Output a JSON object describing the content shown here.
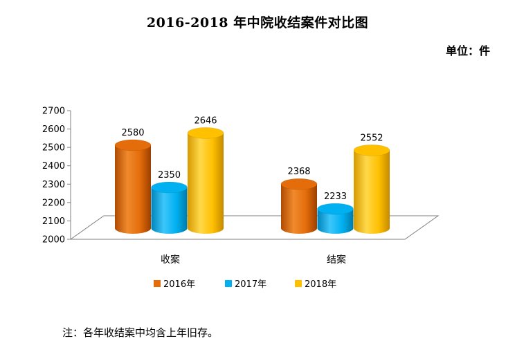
{
  "title": "2016-2018 年中院收结案件对比图",
  "unit_label": "单位：件",
  "note": "注：各年收结案中均含上年旧存。",
  "colors": {
    "2016年": "#e46c0a",
    "2017年": "#00b0f0",
    "2018年": "#ffc000"
  },
  "chart_data": {
    "type": "bar",
    "categories": [
      "收案",
      "结案"
    ],
    "series": [
      {
        "name": "2016年",
        "values": [
          2580,
          2368
        ]
      },
      {
        "name": "2017年",
        "values": [
          2350,
          2233
        ]
      },
      {
        "name": "2018年",
        "values": [
          2646,
          2552
        ]
      }
    ],
    "ylim": [
      2000,
      2700
    ],
    "yticks": [
      "2000",
      "2100",
      "2200",
      "2300",
      "2400",
      "2500",
      "2600",
      "2700"
    ],
    "legend_position": "bottom",
    "grid": false
  }
}
